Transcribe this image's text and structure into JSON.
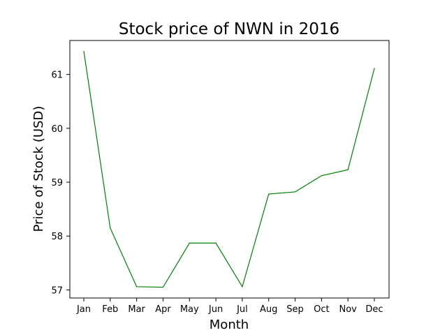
{
  "chart_data": {
    "type": "line",
    "title": "Stock price of NWN in 2016",
    "xlabel": "Month",
    "ylabel": "Price of Stock (USD)",
    "categories": [
      "Jan",
      "Feb",
      "Mar",
      "Apr",
      "May",
      "Jun",
      "Jul",
      "Aug",
      "Sep",
      "Oct",
      "Nov",
      "Dec"
    ],
    "series": [
      {
        "values": [
          61.43,
          58.15,
          57.06,
          57.05,
          57.87,
          57.87,
          57.06,
          58.78,
          58.82,
          59.12,
          59.23,
          61.11
        ]
      }
    ],
    "yticks": [
      57,
      58,
      59,
      60,
      61
    ],
    "ylim": [
      56.85,
      61.63
    ],
    "grid": false,
    "line_color": "#008000"
  }
}
